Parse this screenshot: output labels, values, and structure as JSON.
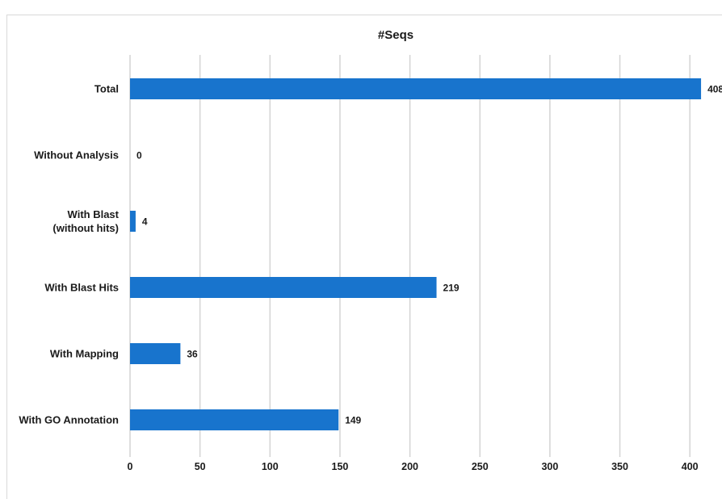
{
  "chart_data": {
    "type": "bar",
    "orientation": "horizontal",
    "title": "#Seqs",
    "categories": [
      "Total",
      "Without Analysis",
      "With Blast\n(without hits)",
      "With Blast Hits",
      "With Mapping",
      "With GO Annotation"
    ],
    "values": [
      408,
      0,
      4,
      219,
      36,
      149
    ],
    "xlim": [
      0,
      410
    ],
    "x_ticks": [
      0,
      50,
      100,
      150,
      200,
      250,
      300,
      350,
      400
    ],
    "xlabel": "",
    "ylabel": "",
    "grid": true,
    "legend": "none",
    "bar_color": "#1874cd",
    "grid_color": "#d4d4d4"
  }
}
